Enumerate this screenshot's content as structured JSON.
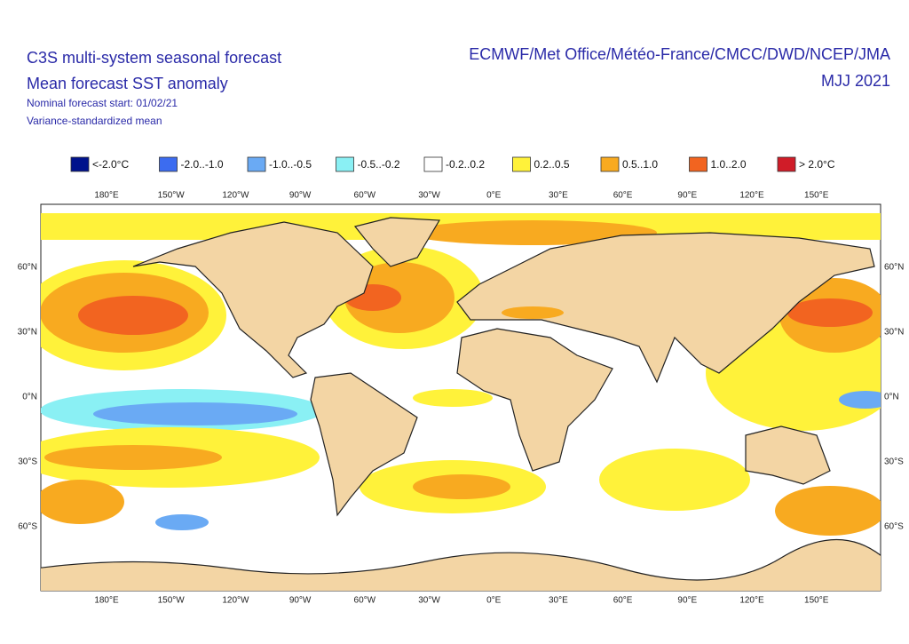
{
  "header": {
    "title_lines": [
      "C3S multi-system seasonal forecast",
      "Mean forecast SST anomaly"
    ],
    "notes": [
      "Nominal forecast start: 01/02/21",
      "Variance-standardized mean"
    ],
    "centres": "ECMWF/Met Office/Météo-France/CMCC/DWD/NCEP/JMA",
    "period": "MJJ 2021"
  },
  "legend": [
    {
      "label": "<-2.0°C",
      "color": "#00128c"
    },
    {
      "label": "-2.0..-1.0",
      "color": "#3c6cf0"
    },
    {
      "label": "-1.0..-0.5",
      "color": "#6aaaf4"
    },
    {
      "label": "-0.5..-0.2",
      "color": "#8af0f4"
    },
    {
      "label": "-0.2..0.2",
      "color": "#ffffff"
    },
    {
      "label": "0.2..0.5",
      "color": "#fff23a"
    },
    {
      "label": "0.5..1.0",
      "color": "#f8aa20"
    },
    {
      "label": "1.0..2.0",
      "color": "#f26420"
    },
    {
      "label": "> 2.0°C",
      "color": "#d01c28"
    }
  ],
  "axes": {
    "lon_labels": [
      "180°E",
      "150°W",
      "120°W",
      "90°W",
      "60°W",
      "30°W",
      "0°E",
      "30°E",
      "60°E",
      "90°E",
      "120°E",
      "150°E"
    ],
    "lat_labels": [
      "60°N",
      "30°N",
      "0°N",
      "30°S",
      "60°S"
    ]
  }
}
